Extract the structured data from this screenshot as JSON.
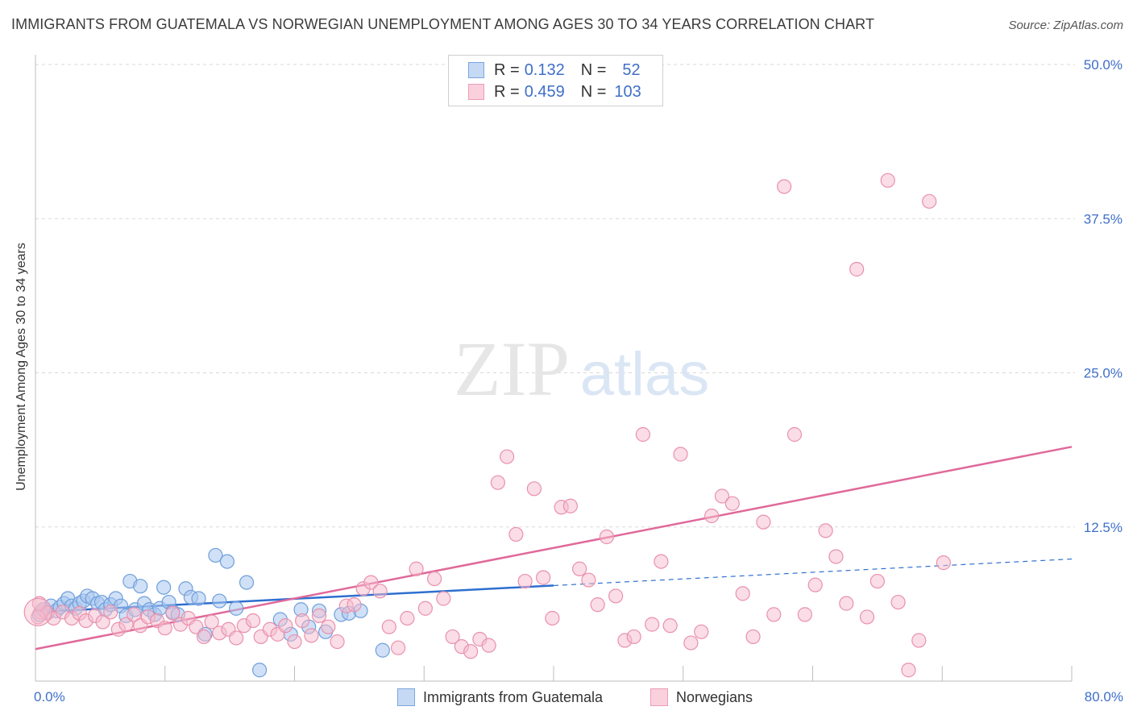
{
  "title": "IMMIGRANTS FROM GUATEMALA VS NORWEGIAN UNEMPLOYMENT AMONG AGES 30 TO 34 YEARS CORRELATION CHART",
  "source": "Source: ZipAtlas.com",
  "watermark": {
    "zip": "ZIP",
    "atlas": "atlas"
  },
  "legend": {
    "r_label": "R =",
    "n_label": "N =",
    "guatemala": {
      "r": "0.132",
      "n": "52"
    },
    "norwegians": {
      "r": "0.459",
      "n": "103"
    }
  },
  "bottom_legend": {
    "guatemala": "Immigrants from Guatemala",
    "norwegians": "Norwegians"
  },
  "colors": {
    "blue_fill": "#a9c7ef",
    "blue_stroke": "#6f9fdc",
    "blue_line": "#2e6fd0",
    "pink_fill": "#f6bccd",
    "pink_stroke": "#e991ad",
    "pink_line": "#e0699a",
    "tick_text": "#3f6fc9",
    "grid": "#d9d9d9"
  },
  "chart_data": {
    "type": "scatter",
    "title": "IMMIGRANTS FROM GUATEMALA VS NORWEGIAN UNEMPLOYMENT AMONG AGES 30 TO 34 YEARS CORRELATION CHART",
    "xlabel": "",
    "ylabel": "Unemployment Among Ages 30 to 34 years",
    "xlim": [
      0,
      80
    ],
    "ylim": [
      0,
      50
    ],
    "x_tick_labels": [
      "0.0%",
      "80.0%"
    ],
    "y_ticks": [
      12.5,
      25.0,
      37.5,
      50.0
    ],
    "y_tick_labels": [
      "12.5%",
      "25.0%",
      "37.5%",
      "50.0%"
    ],
    "grid": true,
    "legend_position": "top-center",
    "series": [
      {
        "name": "Immigrants from Guatemala",
        "r": 0.132,
        "n": 52,
        "trend": {
          "x0": 0,
          "y0": 5.6,
          "x1": 80,
          "y1": 9.9,
          "solid_until_x": 40
        },
        "points": [
          [
            0.3,
            5.4
          ],
          [
            0.6,
            5.8
          ],
          [
            0.9,
            5.6
          ],
          [
            1.2,
            6.1
          ],
          [
            1.6,
            5.7
          ],
          [
            1.9,
            6.0
          ],
          [
            2.2,
            6.3
          ],
          [
            2.5,
            6.7
          ],
          [
            2.8,
            6.1
          ],
          [
            3.1,
            5.9
          ],
          [
            3.4,
            6.3
          ],
          [
            3.7,
            6.5
          ],
          [
            4.0,
            6.9
          ],
          [
            4.4,
            6.7
          ],
          [
            4.8,
            6.3
          ],
          [
            5.1,
            6.4
          ],
          [
            5.4,
            5.8
          ],
          [
            5.8,
            6.2
          ],
          [
            6.2,
            6.7
          ],
          [
            6.6,
            6.1
          ],
          [
            7.0,
            5.3
          ],
          [
            7.3,
            8.1
          ],
          [
            7.7,
            5.8
          ],
          [
            8.1,
            7.7
          ],
          [
            8.4,
            6.3
          ],
          [
            8.8,
            5.8
          ],
          [
            9.2,
            5.4
          ],
          [
            9.6,
            5.9
          ],
          [
            9.9,
            7.6
          ],
          [
            10.3,
            6.4
          ],
          [
            10.6,
            5.6
          ],
          [
            11.0,
            5.4
          ],
          [
            11.6,
            7.5
          ],
          [
            12.0,
            6.8
          ],
          [
            12.6,
            6.7
          ],
          [
            13.1,
            3.8
          ],
          [
            13.9,
            10.2
          ],
          [
            14.2,
            6.5
          ],
          [
            14.8,
            9.7
          ],
          [
            15.5,
            5.9
          ],
          [
            16.3,
            8.0
          ],
          [
            17.3,
            0.9
          ],
          [
            18.9,
            5.0
          ],
          [
            19.7,
            3.8
          ],
          [
            20.5,
            5.8
          ],
          [
            21.1,
            4.4
          ],
          [
            21.9,
            5.7
          ],
          [
            22.4,
            4.0
          ],
          [
            23.6,
            5.4
          ],
          [
            24.2,
            5.5
          ],
          [
            25.1,
            5.7
          ],
          [
            26.8,
            2.5
          ]
        ]
      },
      {
        "name": "Norwegians",
        "r": 0.459,
        "n": 103,
        "trend": {
          "x0": 0,
          "y0": 2.6,
          "x1": 80,
          "y1": 19.0
        },
        "points": [
          [
            0.4,
            5.6
          ],
          [
            0.9,
            5.5
          ],
          [
            1.4,
            5.1
          ],
          [
            2.1,
            5.6
          ],
          [
            2.8,
            5.1
          ],
          [
            3.4,
            5.5
          ],
          [
            3.9,
            4.9
          ],
          [
            4.6,
            5.3
          ],
          [
            5.2,
            4.8
          ],
          [
            5.8,
            5.6
          ],
          [
            6.4,
            4.2
          ],
          [
            7.0,
            4.6
          ],
          [
            7.6,
            5.4
          ],
          [
            8.1,
            4.5
          ],
          [
            8.7,
            5.2
          ],
          [
            9.4,
            4.9
          ],
          [
            10.0,
            4.3
          ],
          [
            10.6,
            5.5
          ],
          [
            11.2,
            4.6
          ],
          [
            11.8,
            5.1
          ],
          [
            12.4,
            4.4
          ],
          [
            13.0,
            3.6
          ],
          [
            13.6,
            4.8
          ],
          [
            14.2,
            3.9
          ],
          [
            14.9,
            4.2
          ],
          [
            15.5,
            3.5
          ],
          [
            16.1,
            4.5
          ],
          [
            16.8,
            4.9
          ],
          [
            17.4,
            3.6
          ],
          [
            18.1,
            4.2
          ],
          [
            18.7,
            3.8
          ],
          [
            19.3,
            4.5
          ],
          [
            20.0,
            3.2
          ],
          [
            20.6,
            4.9
          ],
          [
            21.3,
            3.7
          ],
          [
            21.9,
            5.3
          ],
          [
            22.6,
            4.4
          ],
          [
            23.3,
            3.2
          ],
          [
            24.0,
            6.1
          ],
          [
            24.6,
            6.2
          ],
          [
            25.3,
            7.5
          ],
          [
            25.9,
            8.0
          ],
          [
            26.6,
            7.3
          ],
          [
            27.3,
            4.4
          ],
          [
            28.0,
            2.7
          ],
          [
            28.7,
            5.1
          ],
          [
            29.4,
            9.1
          ],
          [
            30.1,
            5.9
          ],
          [
            30.8,
            8.3
          ],
          [
            31.5,
            6.7
          ],
          [
            32.2,
            3.6
          ],
          [
            32.9,
            2.8
          ],
          [
            33.6,
            2.4
          ],
          [
            34.3,
            3.4
          ],
          [
            35.0,
            2.9
          ],
          [
            35.7,
            16.1
          ],
          [
            36.4,
            18.2
          ],
          [
            37.1,
            11.9
          ],
          [
            37.8,
            8.1
          ],
          [
            38.5,
            15.6
          ],
          [
            39.2,
            8.4
          ],
          [
            39.9,
            5.1
          ],
          [
            40.6,
            14.1
          ],
          [
            41.3,
            14.2
          ],
          [
            42.0,
            9.1
          ],
          [
            42.7,
            8.2
          ],
          [
            43.4,
            6.2
          ],
          [
            44.1,
            11.7
          ],
          [
            44.8,
            6.9
          ],
          [
            45.5,
            3.3
          ],
          [
            46.2,
            3.6
          ],
          [
            46.9,
            20.0
          ],
          [
            47.6,
            4.6
          ],
          [
            48.3,
            9.7
          ],
          [
            49.0,
            4.5
          ],
          [
            49.8,
            18.4
          ],
          [
            50.6,
            3.1
          ],
          [
            51.4,
            4.0
          ],
          [
            52.2,
            13.4
          ],
          [
            53.0,
            15.0
          ],
          [
            53.8,
            14.4
          ],
          [
            54.6,
            7.1
          ],
          [
            55.4,
            3.6
          ],
          [
            56.2,
            12.9
          ],
          [
            57.0,
            5.4
          ],
          [
            57.8,
            40.1
          ],
          [
            58.6,
            20.0
          ],
          [
            59.4,
            5.4
          ],
          [
            60.2,
            7.8
          ],
          [
            61.0,
            12.2
          ],
          [
            61.8,
            10.1
          ],
          [
            62.6,
            6.3
          ],
          [
            63.4,
            33.4
          ],
          [
            64.2,
            5.2
          ],
          [
            65.0,
            8.1
          ],
          [
            65.8,
            40.6
          ],
          [
            66.6,
            6.4
          ],
          [
            67.4,
            0.9
          ],
          [
            68.2,
            3.3
          ],
          [
            69.0,
            38.9
          ],
          [
            70.1,
            9.6
          ],
          [
            0.2,
            5.2
          ],
          [
            0.3,
            6.3
          ]
        ]
      }
    ]
  }
}
